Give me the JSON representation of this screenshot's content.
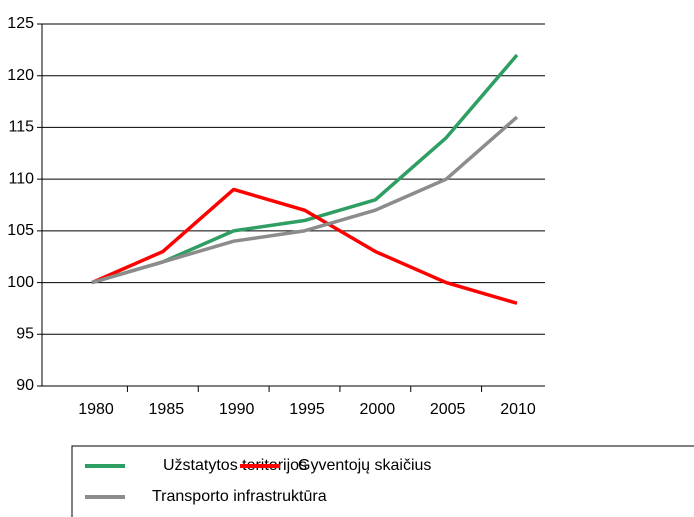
{
  "chart_data": {
    "type": "line",
    "categories": [
      "1980",
      "1985",
      "1990",
      "1995",
      "2000",
      "2005",
      "2010"
    ],
    "series": [
      {
        "name": "Užstatytos teritorijos",
        "color": "#2e9e63",
        "values": [
          100,
          102,
          105,
          106,
          108,
          114,
          122
        ]
      },
      {
        "name": "Gyventojų skaičius",
        "color": "#ff0000",
        "values": [
          100,
          103,
          109,
          107,
          103,
          100,
          98
        ]
      },
      {
        "name": "Transporto infrastruktūra",
        "color": "#8c8c8c",
        "values": [
          100,
          102,
          104,
          105,
          107,
          110,
          116
        ]
      }
    ],
    "ylim": [
      90,
      125
    ],
    "yticks": [
      90,
      95,
      100,
      105,
      110,
      115,
      120,
      125
    ],
    "grid": true
  }
}
